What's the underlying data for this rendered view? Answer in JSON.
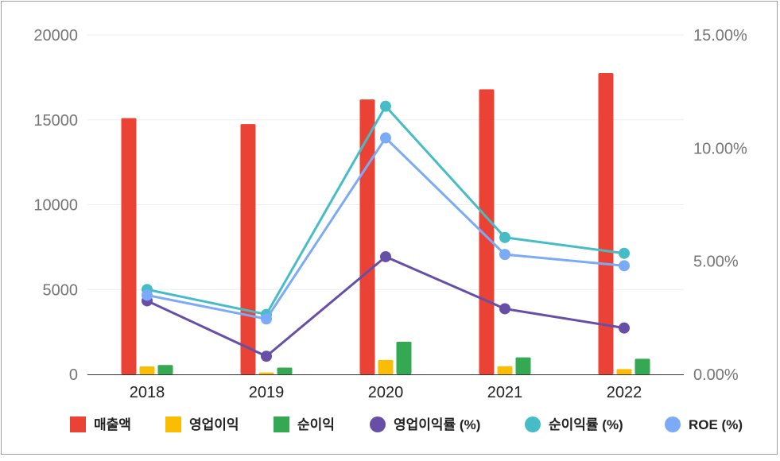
{
  "chart_data": {
    "type": "bar",
    "categories": [
      "2018",
      "2019",
      "2020",
      "2021",
      "2022"
    ],
    "bar_series": [
      {
        "name": "매출액",
        "color": "#ea4335",
        "values": [
          15100,
          14750,
          16200,
          16800,
          17750
        ]
      },
      {
        "name": "영업이익",
        "color": "#fbbc04",
        "values": [
          470,
          110,
          850,
          480,
          310
        ]
      },
      {
        "name": "순이익",
        "color": "#34a853",
        "values": [
          550,
          400,
          1920,
          1000,
          920
        ]
      }
    ],
    "line_series": [
      {
        "name": "영업이익률 (%)",
        "color": "#674ea7",
        "values": [
          3.25,
          0.8,
          5.2,
          2.9,
          2.05
        ],
        "axis": "right"
      },
      {
        "name": "순이익률 (%)",
        "color": "#46bdc6",
        "values": [
          3.75,
          2.65,
          11.85,
          6.05,
          5.35
        ],
        "axis": "right"
      },
      {
        "name": "ROE (%)",
        "color": "#7baaf7",
        "values": [
          3.5,
          2.45,
          10.45,
          5.3,
          4.8
        ],
        "axis": "right"
      }
    ],
    "left_axis": {
      "ticks": [
        "0",
        "5000",
        "10000",
        "15000",
        "20000"
      ],
      "range": [
        0,
        20000
      ]
    },
    "right_axis": {
      "ticks": [
        "0.00%",
        "5.00%",
        "10.00%",
        "15.00%"
      ],
      "range": [
        0,
        15
      ]
    },
    "grid": true,
    "legend_position": "bottom"
  }
}
